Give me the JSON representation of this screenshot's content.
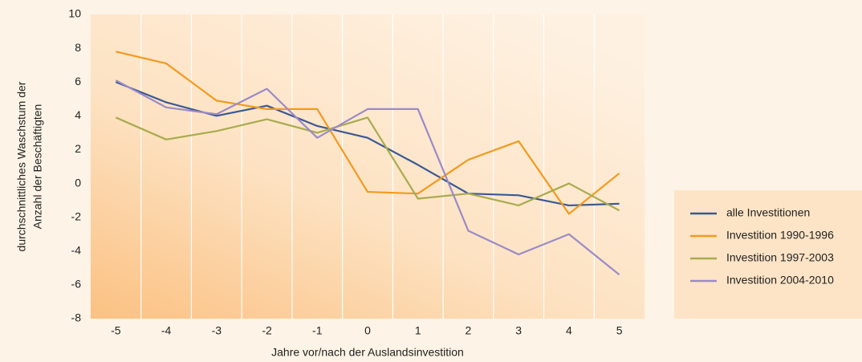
{
  "chart_data": {
    "type": "line",
    "xlabel": "Jahre vor/nach der Auslandsinvestition",
    "ylabel": [
      "durchschnittliches Waschstum der",
      "Anzahl der Beschäftigten"
    ],
    "x": [
      -5,
      -4,
      -3,
      -2,
      -1,
      0,
      1,
      2,
      3,
      4,
      5
    ],
    "series": [
      {
        "name": "alle Investitionen",
        "color": "#3b5893",
        "values": [
          6.0,
          4.8,
          4.0,
          4.6,
          3.4,
          2.7,
          1.1,
          -0.6,
          -0.7,
          -1.3,
          -1.2
        ]
      },
      {
        "name": "Investition 1990-1996",
        "color": "#f29a1f",
        "values": [
          7.8,
          7.1,
          4.9,
          4.4,
          4.4,
          -0.5,
          -0.6,
          1.4,
          2.5,
          -1.8,
          0.6
        ]
      },
      {
        "name": "Investition 1997-2003",
        "color": "#a8ac4e",
        "values": [
          3.9,
          2.6,
          3.1,
          3.8,
          3.0,
          3.9,
          -0.9,
          -0.6,
          -1.3,
          0.0,
          -1.6
        ]
      },
      {
        "name": "Investition 2004-2010",
        "color": "#9a8bc7",
        "values": [
          6.1,
          4.5,
          4.1,
          5.6,
          2.7,
          4.4,
          4.4,
          -2.8,
          -4.2,
          -3.0,
          -5.4
        ]
      }
    ],
    "xlim": [
      -5.5,
      5.5
    ],
    "xticks": [
      -5,
      -4,
      -3,
      -2,
      -1,
      0,
      1,
      2,
      3,
      4,
      5
    ],
    "ylim": [
      -8,
      10
    ],
    "yticks": [
      -8,
      -6,
      -4,
      -2,
      0,
      2,
      4,
      6,
      8,
      10
    ],
    "legend": "right"
  }
}
